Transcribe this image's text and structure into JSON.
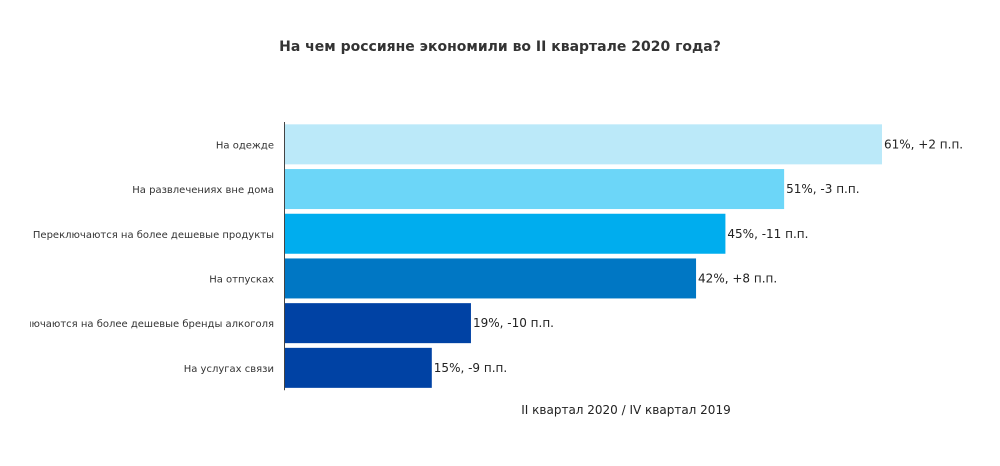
{
  "chart_data": {
    "type": "bar",
    "orientation": "horizontal",
    "title": "На чем россияне экономили во II квартале 2020 года?",
    "xlabel": "II квартал 2020 / IV квартал 2019",
    "ylabel": "",
    "xlim": [
      0,
      61
    ],
    "grid": false,
    "categories": [
      "На одежде",
      "На развлечениях вне дома",
      "Переключаются на более дешевые продукты",
      "На отпусках",
      "Переключаются на более дешевые бренды алкоголя",
      "На услугах связи"
    ],
    "values": [
      61,
      51,
      45,
      42,
      19,
      15
    ],
    "labels": [
      "61%, +2 п.п.",
      "51%, -3 п.п.",
      "45%, -11 п.п.",
      "42%, +8 п.п.",
      "19%, -10 п.п.",
      "15%, -9 п.п."
    ],
    "colors": [
      "#bbe9f9",
      "#6cd6f8",
      "#00adee",
      "#0077c4",
      "#0042a4",
      "#0042a4"
    ]
  }
}
